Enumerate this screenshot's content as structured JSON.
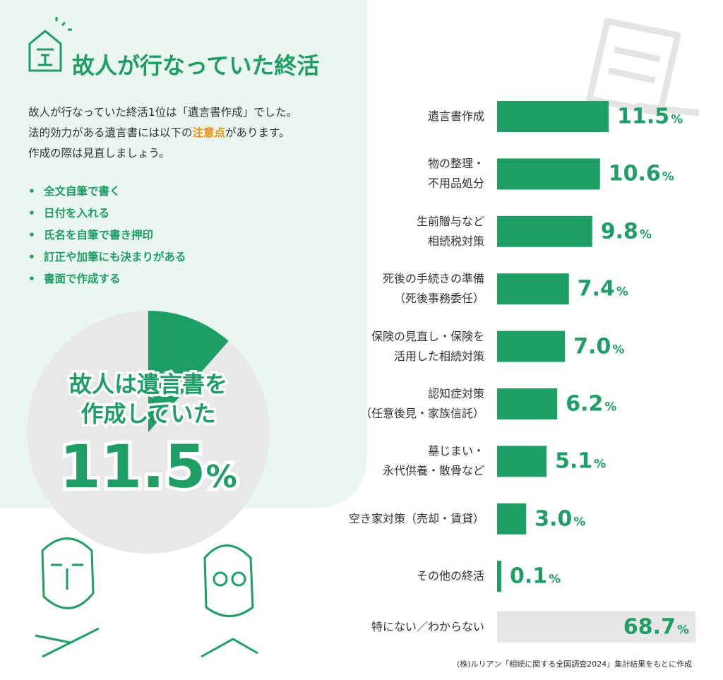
{
  "header": {
    "title": "故人が行なっていた終活"
  },
  "intro": {
    "line1": "故人が行なっていた終活1位は「遺言書作成」でした。",
    "line2a": "法的効力がある遺言書には以下の",
    "line2_emphasis": "注意点",
    "line2b": "があります。",
    "line3": "作成の際は見直しましょう。"
  },
  "points": [
    "全文自筆で書く",
    "日付を入れる",
    "氏名を自筆で書き押印",
    "訂正や加筆にも決まりがある",
    "書面で作成する"
  ],
  "pie": {
    "type": "pie",
    "lines": [
      "故人は遺言書を",
      "作成していた"
    ],
    "value": 11.5,
    "value_label": "11.5%",
    "color": "#1e9e64",
    "rest_color": "#e8e8e8"
  },
  "chart_data": {
    "type": "bar",
    "orientation": "horizontal",
    "categories": [
      "遺言書作成",
      "物の整理・\n不用品処分",
      "生前贈与など\n相続税対策",
      "死後の手続きの準備\n（死後事務委任）",
      "保険の見直し・保険を\n活用した相続対策",
      "認知症対策\n（任意後見・家族信託）",
      "墓じまい・\n永代供養・散骨など",
      "空き家対策（売却・賃貸）",
      "その他の終活"
    ],
    "values": [
      11.5,
      10.6,
      9.8,
      7.4,
      7.0,
      6.2,
      5.1,
      3.0,
      0.1
    ],
    "value_labels": [
      "11.5%",
      "10.6%",
      "9.8%",
      "7.4%",
      "7.0%",
      "6.2%",
      "5.1%",
      "3.0%",
      "0.1%"
    ],
    "color": "#1e9e64",
    "xlim": [
      0,
      12
    ],
    "highlight": {
      "category": "特にない／わからない",
      "value": 68.7,
      "value_label": "68.7%",
      "color": "#e6e6e6"
    }
  },
  "source": "(株)ルリアン「相続に関する全国調査2024」集計結果をもとに作成"
}
